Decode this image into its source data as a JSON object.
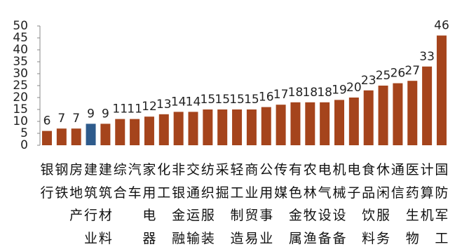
{
  "chart_data": {
    "type": "bar",
    "categories": [
      "银行",
      "钢铁",
      "房地产",
      "建筑行业",
      "建筑材料",
      "综合",
      "汽车",
      "家用电器",
      "化工",
      "非银金融",
      "交通运输",
      "纺织服装",
      "采掘",
      "轻工制造",
      "商业贸易",
      "公用事业",
      "传媒",
      "有色金属",
      "农林牧渔",
      "电气设备",
      "机械设备",
      "电子",
      "食品饮料",
      "休闲服务",
      "通信",
      "医药生物",
      "计算机",
      "国防军工"
    ],
    "values": [
      6,
      7,
      7,
      9,
      9,
      11,
      11,
      12,
      13,
      14,
      14,
      15,
      15,
      15,
      15,
      16,
      17,
      18,
      18,
      18,
      19,
      20,
      23,
      25,
      26,
      27,
      33,
      46
    ],
    "colors": [
      "#a5441c",
      "#a5441c",
      "#a5441c",
      "#2e5b8c",
      "#a5441c",
      "#a5441c",
      "#a5441c",
      "#a5441c",
      "#a5441c",
      "#a5441c",
      "#a5441c",
      "#a5441c",
      "#a5441c",
      "#a5441c",
      "#a5441c",
      "#a5441c",
      "#a5441c",
      "#a5441c",
      "#a5441c",
      "#a5441c",
      "#a5441c",
      "#a5441c",
      "#a5441c",
      "#a5441c",
      "#a5441c",
      "#a5441c",
      "#a5441c",
      "#a5441c"
    ],
    "ylim": [
      0,
      50
    ],
    "yticks": [
      0,
      5,
      10,
      15,
      20,
      25,
      30,
      35,
      40,
      45,
      50
    ]
  }
}
